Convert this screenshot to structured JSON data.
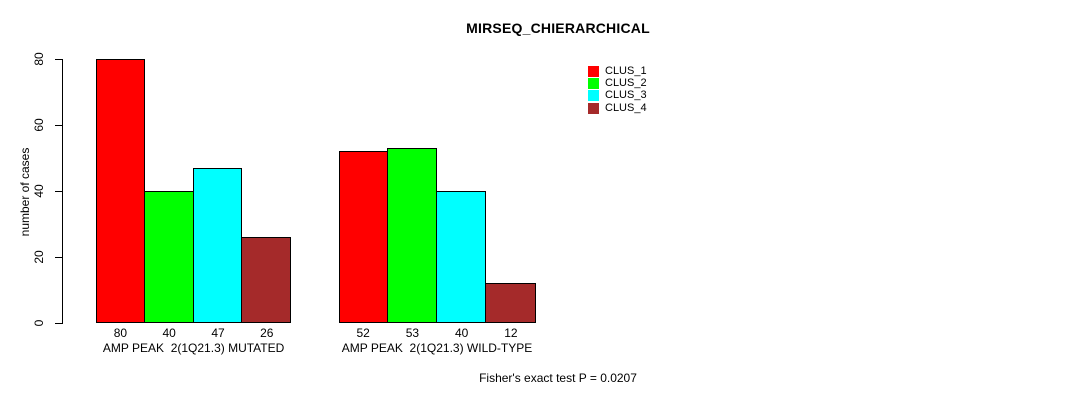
{
  "title": "MIRSEQ_CHIERARCHICAL",
  "y_axis": {
    "label": "number of cases",
    "ticks": [
      0,
      20,
      40,
      60,
      80
    ]
  },
  "legend": {
    "items": [
      {
        "label": "CLUS_1",
        "color": "#FF0000"
      },
      {
        "label": "CLUS_2",
        "color": "#00FF00"
      },
      {
        "label": "CLUS_3",
        "color": "#00FFFF"
      },
      {
        "label": "CLUS_4",
        "color": "#A52A2A"
      }
    ]
  },
  "groups": [
    {
      "label": "AMP PEAK  2(1Q21.3) MUTATED",
      "values": [
        80,
        40,
        47,
        26
      ]
    },
    {
      "label": "AMP PEAK  2(1Q21.3) WILD-TYPE",
      "values": [
        52,
        53,
        40,
        12
      ]
    }
  ],
  "footer": "Fisher's exact test P = 0.0207",
  "chart_data": {
    "type": "bar",
    "title": "MIRSEQ_CHIERARCHICAL",
    "xlabel": "",
    "ylabel": "number of cases",
    "ylim": [
      0,
      80
    ],
    "yticks": [
      0,
      20,
      40,
      60,
      80
    ],
    "grid": false,
    "bar_borders": "black",
    "legend_position": "top-right",
    "categories": [
      "AMP PEAK  2(1Q21.3) MUTATED",
      "AMP PEAK  2(1Q21.3) WILD-TYPE"
    ],
    "series": [
      {
        "name": "CLUS_1",
        "color": "#FF0000",
        "values": [
          80,
          52
        ]
      },
      {
        "name": "CLUS_2",
        "color": "#00FF00",
        "values": [
          40,
          53
        ]
      },
      {
        "name": "CLUS_3",
        "color": "#00FFFF",
        "values": [
          47,
          40
        ]
      },
      {
        "name": "CLUS_4",
        "color": "#A52A2A",
        "values": [
          26,
          12
        ]
      }
    ],
    "value_labels_below_bars": [
      [
        80,
        40,
        47,
        26
      ],
      [
        52,
        53,
        40,
        12
      ]
    ],
    "annotation": "Fisher's exact test P = 0.0207"
  }
}
